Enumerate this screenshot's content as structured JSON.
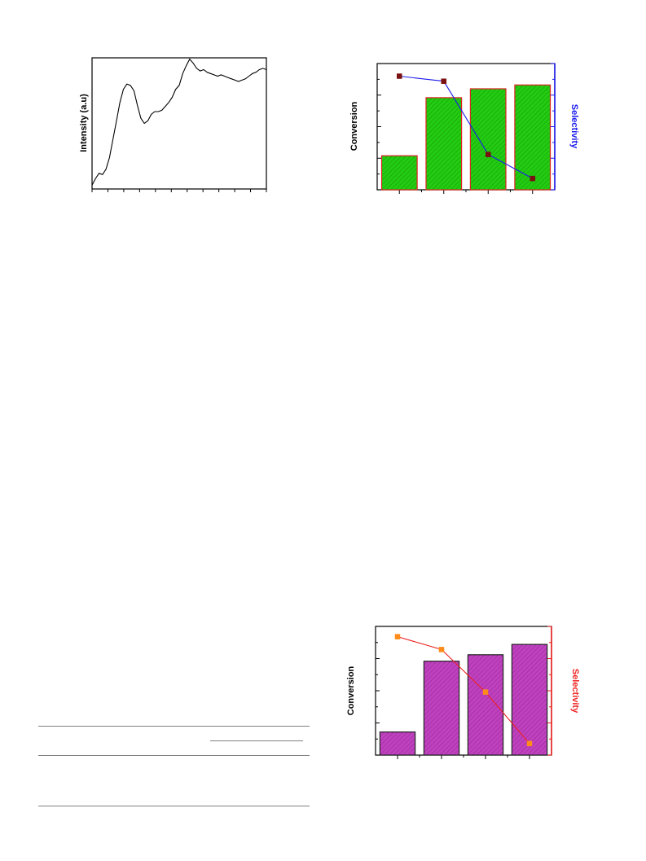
{
  "chart_data": [
    {
      "type": "line",
      "ylabel": "Intensity (a.u)",
      "xlabel": "",
      "y_ticks_labeled": false,
      "x_ticks_labeled": false,
      "xlim": [
        0,
        100
      ],
      "ylim": [
        0,
        100
      ],
      "series": [
        {
          "x": [
            0,
            2,
            4,
            6,
            8,
            10,
            12,
            14,
            16,
            18,
            20,
            22,
            24,
            26,
            28,
            30,
            32,
            34,
            36,
            38,
            40,
            42,
            44,
            46,
            48,
            50,
            52,
            54,
            56,
            58,
            60,
            62,
            64,
            66,
            68,
            70,
            72,
            74,
            76,
            78,
            80,
            82,
            84,
            86,
            88,
            90,
            92,
            94,
            96,
            98,
            100
          ],
          "y": [
            3,
            8,
            12,
            11,
            15,
            24,
            38,
            52,
            66,
            76,
            80,
            79,
            75,
            64,
            54,
            50,
            52,
            57,
            59,
            59,
            60,
            63,
            66,
            70,
            76,
            79,
            88,
            94,
            99,
            96,
            92,
            90,
            91,
            89,
            88,
            87,
            86,
            87,
            86,
            85,
            84,
            83,
            82,
            83,
            84,
            86,
            88,
            89,
            91,
            92,
            91
          ],
          "color": "#000000"
        }
      ]
    },
    {
      "type": "bar",
      "ylabel": "Conversion",
      "y2label": "Selectivity",
      "categories": [
        "",
        "",
        "",
        ""
      ],
      "values": [
        27,
        73,
        80,
        83
      ],
      "ylim": [
        0,
        100
      ],
      "secondary_series": {
        "values": [
          90,
          86,
          28,
          9
        ],
        "ylim": [
          0,
          100
        ]
      },
      "colors": {
        "bar_fill": "#22cc11",
        "bar_stroke": "#dd2222",
        "line": "#1a1aee",
        "marker": "#7a1010",
        "right_axis": "#1a1aee",
        "y2label_color": "#1a1aee"
      }
    },
    {
      "type": "bar",
      "ylabel": "Conversion",
      "y2label": "Selectivity",
      "categories": [
        "",
        "",
        "",
        ""
      ],
      "values": [
        18,
        73,
        78,
        86
      ],
      "ylim": [
        0,
        100
      ],
      "secondary_series": {
        "values": [
          92,
          82,
          49,
          9
        ],
        "ylim": [
          0,
          100
        ]
      },
      "colors": {
        "bar_fill": "#c040c0",
        "bar_stroke": "#222222",
        "line": "#ee2222",
        "marker": "#ff8c1a",
        "right_axis": "#ee2222",
        "y2label_color": "#ee2222"
      }
    }
  ]
}
